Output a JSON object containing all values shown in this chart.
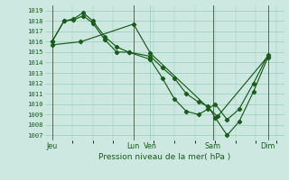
{
  "title": "Pression niveau de la mer( hPa )",
  "ylabel_values": [
    1007,
    1008,
    1009,
    1010,
    1011,
    1012,
    1013,
    1014,
    1015,
    1016,
    1017,
    1018,
    1019
  ],
  "ylim": [
    1006.5,
    1019.5
  ],
  "xlim": [
    0,
    100
  ],
  "x_ticks": [
    3,
    37,
    44,
    70,
    93
  ],
  "x_tick_labels": [
    "Jeu",
    "Lun",
    "Ven",
    "Sam",
    "Dim"
  ],
  "vlines_dark": [
    3,
    37,
    70,
    93
  ],
  "background_color": "#cce8e0",
  "grid_color": "#99ccbb",
  "line_color": "#1a5c1a",
  "line1_x": [
    3,
    8,
    12,
    16,
    20,
    25,
    30,
    35,
    44,
    49,
    54,
    59,
    64,
    68,
    71,
    76,
    81,
    87,
    93
  ],
  "line1_y": [
    1016.0,
    1018.0,
    1018.1,
    1018.5,
    1017.8,
    1016.2,
    1015.0,
    1015.0,
    1014.6,
    1013.5,
    1012.5,
    1011.0,
    1010.2,
    1009.8,
    1008.7,
    1007.0,
    1008.3,
    1011.2,
    1014.5
  ],
  "line2_x": [
    3,
    8,
    12,
    16,
    20,
    25,
    30,
    35,
    44,
    49,
    54,
    59,
    64,
    68,
    71,
    76,
    81,
    87,
    93
  ],
  "line2_y": [
    1016.0,
    1018.0,
    1018.2,
    1018.8,
    1018.0,
    1016.5,
    1015.5,
    1015.0,
    1014.3,
    1012.5,
    1010.5,
    1009.3,
    1009.0,
    1009.5,
    1010.0,
    1008.5,
    1009.5,
    1012.0,
    1014.7
  ],
  "line3_x": [
    3,
    15,
    37,
    44,
    72,
    93
  ],
  "line3_y": [
    1015.7,
    1016.0,
    1017.7,
    1014.9,
    1008.8,
    1014.6
  ],
  "marker": "D",
  "markersize": 2.2,
  "linewidth": 0.85
}
